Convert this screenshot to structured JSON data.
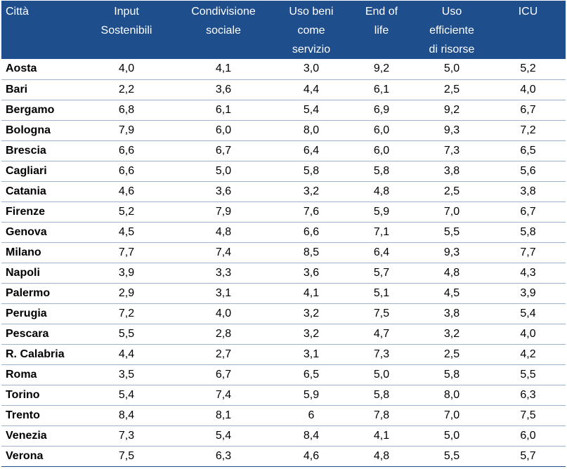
{
  "table": {
    "headers": [
      "Città",
      "Input\nSostenibili",
      "Condivisione\nsociale",
      "Uso beni\ncome\nservizio",
      "End of\nlife",
      "Uso\nefficiente\ndi risorse",
      "ICU"
    ],
    "rows": [
      [
        "Aosta",
        "4,0",
        "4,1",
        "3,0",
        "9,2",
        "5,0",
        "5,2"
      ],
      [
        "Bari",
        "2,2",
        "3,6",
        "4,4",
        "6,1",
        "2,5",
        "4,0"
      ],
      [
        "Bergamo",
        "6,8",
        "6,1",
        "5,4",
        "6,9",
        "9,2",
        "6,7"
      ],
      [
        "Bologna",
        "7,9",
        "6,0",
        "8,0",
        "6,0",
        "9,3",
        "7,2"
      ],
      [
        "Brescia",
        "6,6",
        "6,7",
        "6,4",
        "6,0",
        "7,3",
        "6,5"
      ],
      [
        "Cagliari",
        "6,6",
        "5,0",
        "5,8",
        "5,8",
        "3,8",
        "5,6"
      ],
      [
        "Catania",
        "4,6",
        "3,6",
        "3,2",
        "4,8",
        "2,5",
        "3,8"
      ],
      [
        "Firenze",
        "5,2",
        "7,9",
        "7,6",
        "5,9",
        "7,0",
        "6,7"
      ],
      [
        "Genova",
        "4,5",
        "4,8",
        "6,6",
        "7,1",
        "5,5",
        "5,8"
      ],
      [
        "Milano",
        "7,7",
        "7,4",
        "8,5",
        "6,4",
        "9,3",
        "7,7"
      ],
      [
        "Napoli",
        "3,9",
        "3,3",
        "3,6",
        "5,7",
        "4,8",
        "4,3"
      ],
      [
        "Palermo",
        "2,9",
        "3,1",
        "4,1",
        "5,1",
        "4,5",
        "3,9"
      ],
      [
        "Perugia",
        "7,2",
        "4,0",
        "3,2",
        "7,5",
        "3,8",
        "5,4"
      ],
      [
        "Pescara",
        "5,5",
        "2,8",
        "3,2",
        "4,7",
        "3,2",
        "4,0"
      ],
      [
        "R. Calabria",
        "4,4",
        "2,7",
        "3,1",
        "7,3",
        "2,5",
        "4,2"
      ],
      [
        "Roma",
        "3,5",
        "6,7",
        "6,5",
        "5,0",
        "5,8",
        "5,5"
      ],
      [
        "Torino",
        "5,4",
        "7,4",
        "5,9",
        "5,8",
        "8,0",
        "6,3"
      ],
      [
        "Trento",
        "8,4",
        "8,1",
        "6",
        "7,8",
        "7,0",
        "7,5"
      ],
      [
        "Venezia",
        "7,3",
        "5,4",
        "8,4",
        "4,1",
        "5,0",
        "6,0"
      ],
      [
        "Verona",
        "7,5",
        "6,3",
        "4,6",
        "4,8",
        "5,5",
        "5,7"
      ]
    ]
  },
  "colors": {
    "header_bg": "#1f4e8c",
    "header_text": "#ffffff",
    "row_border": "#9db2cf"
  }
}
